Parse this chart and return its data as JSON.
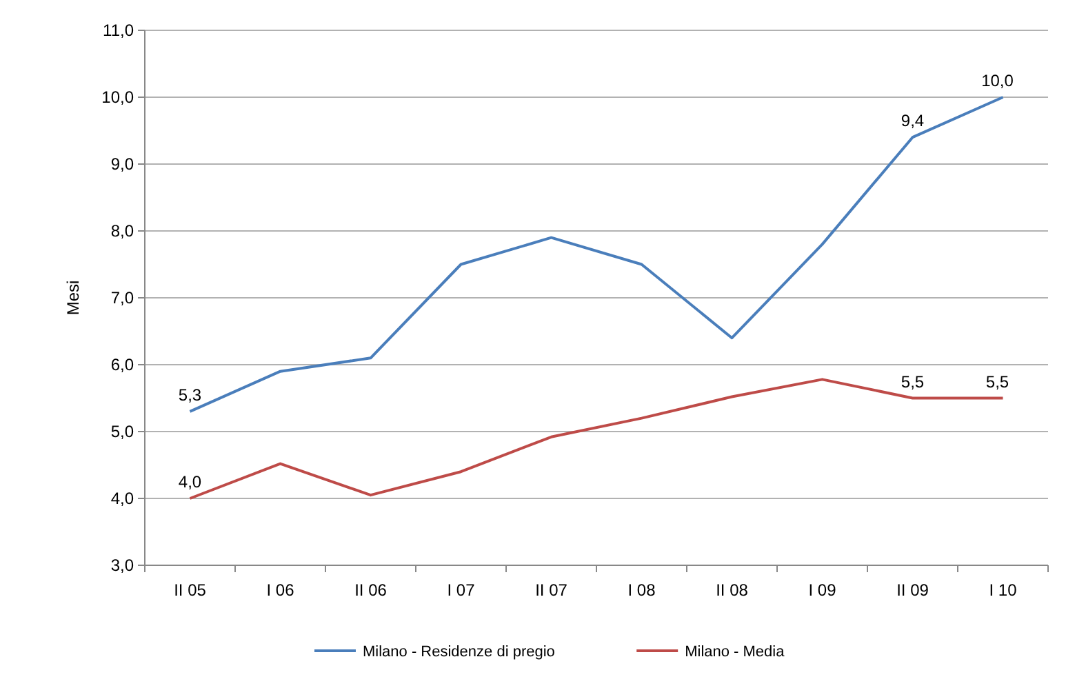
{
  "chart_data": {
    "type": "line",
    "ylabel": "Mesi",
    "categories": [
      "II 05",
      "I 06",
      "II 06",
      "I 07",
      "II 07",
      "I 08",
      "II 08",
      "I 09",
      "II 09",
      "I 10"
    ],
    "series": [
      {
        "name": "Milano - Residenze di pregio",
        "color": "#4a7ebb",
        "values": [
          5.3,
          5.9,
          6.1,
          7.5,
          7.9,
          7.5,
          6.4,
          7.8,
          9.4,
          10.0
        ],
        "value_labels": [
          "5,3",
          null,
          null,
          null,
          null,
          null,
          null,
          null,
          "9,4",
          "10,0"
        ]
      },
      {
        "name": "Milano - Media",
        "color": "#be4b48",
        "values": [
          4.0,
          4.52,
          4.05,
          4.4,
          4.92,
          5.2,
          5.52,
          5.78,
          5.5,
          5.5
        ],
        "value_labels": [
          "4,0",
          null,
          null,
          null,
          null,
          null,
          null,
          null,
          "5,5",
          "5,5"
        ]
      }
    ],
    "ylim": [
      3,
      11
    ],
    "yticks": [
      {
        "value": 3,
        "label": "3,0"
      },
      {
        "value": 4,
        "label": "4,0"
      },
      {
        "value": 5,
        "label": "5,0"
      },
      {
        "value": 6,
        "label": "6,0"
      },
      {
        "value": 7,
        "label": "7,0"
      },
      {
        "value": 8,
        "label": "8,0"
      },
      {
        "value": 9,
        "label": "9,0"
      },
      {
        "value": 10,
        "label": "10,0"
      },
      {
        "value": 11,
        "label": "11,0"
      }
    ],
    "grid": "y",
    "legend": "bottom",
    "marker": "none",
    "line_style": "solid"
  }
}
